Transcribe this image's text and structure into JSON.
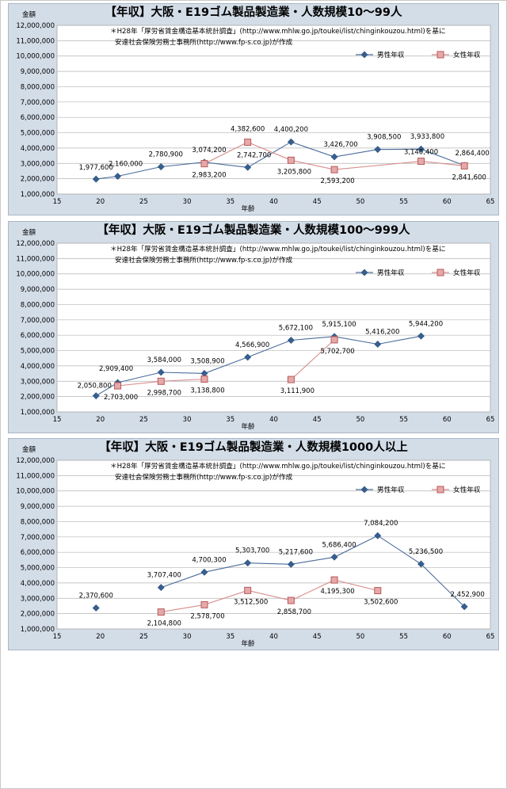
{
  "chart_data": [
    {
      "type": "line",
      "title": "【年収】大阪・E19ゴム製品製造業・人数規模10～99人",
      "note_line1": "＊H28年「厚労省賃金構造基本統計調査」(http://www.mhlw.go.jp/toukei/list/chinginkouzou.html)を基に",
      "note_line2": "安達社会保険労務士事務所(http://www.fp-s.co.jp)が作成",
      "ylabel": "金額",
      "xlabel": "年齢",
      "xlim": [
        15,
        65
      ],
      "ylim": [
        1000000,
        12000000
      ],
      "xticks": [
        "15",
        "20",
        "25",
        "30",
        "35",
        "40",
        "45",
        "50",
        "55",
        "60",
        "65"
      ],
      "yticks": [
        "1,000,000",
        "2,000,000",
        "3,000,000",
        "4,000,000",
        "5,000,000",
        "6,000,000",
        "7,000,000",
        "8,000,000",
        "9,000,000",
        "10,000,000",
        "11,000,000",
        "12,000,000"
      ],
      "grid": true,
      "legend": "top-right",
      "series": [
        {
          "name": "男性年収",
          "color": "#4a6b9b",
          "marker": "diamond",
          "x": [
            19.5,
            22,
            27,
            32,
            37,
            42,
            47,
            52,
            57,
            62
          ],
          "y": [
            1977600,
            2160000,
            2780900,
            3074200,
            2742700,
            4400200,
            3426700,
            3908500,
            3933800,
            2864400
          ],
          "labels": [
            "1,977,600",
            "2,160,000",
            "2,780,900",
            "3,074,200",
            "2,742,700",
            "4,400,200",
            "3,426,700",
            "3,908,500",
            "3,933,800",
            "2,864,400"
          ]
        },
        {
          "name": "女性年収",
          "color": "#d58b8b",
          "marker": "square",
          "x": [
            32,
            37,
            42,
            47,
            57,
            62
          ],
          "y": [
            2983200,
            4382600,
            3205800,
            2593200,
            3140400,
            2841600
          ],
          "labels": [
            "2,983,200",
            "4,382,600",
            "3,205,800",
            "2,593,200",
            "3,140,400",
            "2,841,600"
          ]
        }
      ]
    },
    {
      "type": "line",
      "title": "【年収】大阪・E19ゴム製品製造業・人数規模100～999人",
      "note_line1": "＊H28年「厚労省賃金構造基本統計調査」(http://www.mhlw.go.jp/toukei/list/chinginkouzou.html)を基に",
      "note_line2": "安達社会保険労務士事務所(http://www.fp-s.co.jp)が作成",
      "ylabel": "金額",
      "xlabel": "年齢",
      "xlim": [
        15,
        65
      ],
      "ylim": [
        1000000,
        12000000
      ],
      "xticks": [
        "15",
        "20",
        "25",
        "30",
        "35",
        "40",
        "45",
        "50",
        "55",
        "60",
        "65"
      ],
      "yticks": [
        "1,000,000",
        "2,000,000",
        "3,000,000",
        "4,000,000",
        "5,000,000",
        "6,000,000",
        "7,000,000",
        "8,000,000",
        "9,000,000",
        "10,000,000",
        "11,000,000",
        "12,000,000"
      ],
      "grid": true,
      "legend": "top-right",
      "series": [
        {
          "name": "男性年収",
          "color": "#4a6b9b",
          "marker": "diamond",
          "x": [
            19.5,
            22,
            27,
            32,
            37,
            42,
            47,
            52,
            57
          ],
          "y": [
            2050800,
            2909400,
            3584000,
            3508900,
            4566900,
            5672100,
            5915100,
            5416200,
            5944200
          ],
          "labels": [
            "2,050,800",
            "2,909,400",
            "3,584,000",
            "3,508,900",
            "4,566,900",
            "5,672,100",
            "5,915,100",
            "5,416,200",
            "5,944,200"
          ]
        },
        {
          "name": "女性年収",
          "color": "#d58b8b",
          "marker": "square",
          "x": [
            22,
            27,
            32,
            42,
            47
          ],
          "y": [
            2703000,
            2998700,
            3138800,
            3111900,
            5702700
          ],
          "segments": [
            [
              0,
              2
            ],
            [
              3,
              4
            ]
          ],
          "labels": [
            "2,703,000",
            "2,998,700",
            "3,138,800",
            "3,111,900",
            "5,702,700"
          ]
        }
      ]
    },
    {
      "type": "line",
      "title": "【年収】大阪・E19ゴム製品製造業・人数規模1000人以上",
      "note_line1": "＊H28年「厚労省賃金構造基本統計調査」(http://www.mhlw.go.jp/toukei/list/chinginkouzou.html)を基に",
      "note_line2": "安達社会保険労務士事務所(http://www.fp-s.co.jp)が作成",
      "ylabel": "金額",
      "xlabel": "年齢",
      "xlim": [
        15,
        65
      ],
      "ylim": [
        1000000,
        12000000
      ],
      "xticks": [
        "15",
        "20",
        "25",
        "30",
        "35",
        "40",
        "45",
        "50",
        "55",
        "60",
        "65"
      ],
      "yticks": [
        "1,000,000",
        "2,000,000",
        "3,000,000",
        "4,000,000",
        "5,000,000",
        "6,000,000",
        "7,000,000",
        "8,000,000",
        "9,000,000",
        "10,000,000",
        "11,000,000",
        "12,000,000"
      ],
      "grid": true,
      "legend": "top-right",
      "series": [
        {
          "name": "男性年収",
          "color": "#4a6b9b",
          "marker": "diamond",
          "x": [
            19.5,
            27,
            32,
            37,
            42,
            47,
            52,
            57,
            62
          ],
          "y": [
            2370600,
            3707400,
            4700300,
            5303700,
            5217600,
            5686400,
            7084200,
            5236500,
            2452900
          ],
          "segments": [
            [
              0,
              0
            ],
            [
              1,
              8
            ]
          ],
          "labels": [
            "2,370,600",
            "3,707,400",
            "4,700,300",
            "5,303,700",
            "5,217,600",
            "5,686,400",
            "7,084,200",
            "5,236,500",
            "2,452,900"
          ]
        },
        {
          "name": "女性年収",
          "color": "#d58b8b",
          "marker": "square",
          "x": [
            27,
            32,
            37,
            42,
            47,
            52
          ],
          "y": [
            2104800,
            2578700,
            3512500,
            2858700,
            4195300,
            3502600
          ],
          "labels": [
            "2,104,800",
            "2,578,700",
            "3,512,500",
            "2,858,700",
            "4,195,300",
            "3,502,600"
          ]
        }
      ]
    }
  ]
}
